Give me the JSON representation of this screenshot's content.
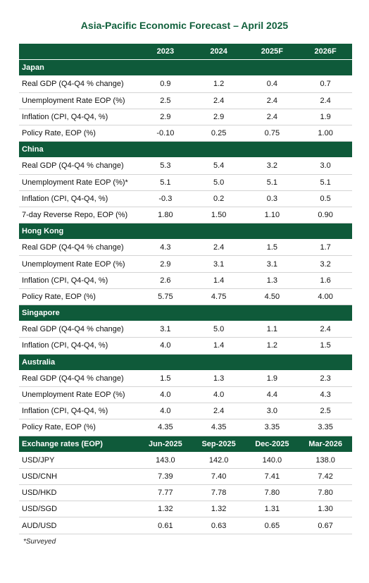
{
  "title": "Asia-Pacific Economic Forecast – April 2025",
  "header": [
    "2023",
    "2024",
    "2025F",
    "2026F"
  ],
  "sections": [
    {
      "name": "Japan",
      "rows": [
        {
          "label": "Real GDP (Q4-Q4 % change)",
          "values": [
            "0.9",
            "1.2",
            "0.4",
            "0.7"
          ]
        },
        {
          "label": "Unemployment Rate EOP (%)",
          "values": [
            "2.5",
            "2.4",
            "2.4",
            "2.4"
          ]
        },
        {
          "label": "Inflation (CPI, Q4-Q4, %)",
          "values": [
            "2.9",
            "2.9",
            "2.4",
            "1.9"
          ]
        },
        {
          "label": "Policy Rate, EOP (%)",
          "values": [
            "-0.10",
            "0.25",
            "0.75",
            "1.00"
          ]
        }
      ]
    },
    {
      "name": "China",
      "rows": [
        {
          "label": "Real GDP (Q4-Q4 % change)",
          "values": [
            "5.3",
            "5.4",
            "3.2",
            "3.0"
          ]
        },
        {
          "label": "Unemployment Rate EOP (%)*",
          "values": [
            "5.1",
            "5.0",
            "5.1",
            "5.1"
          ]
        },
        {
          "label": "Inflation (CPI, Q4-Q4, %)",
          "values": [
            "-0.3",
            "0.2",
            "0.3",
            "0.5"
          ]
        },
        {
          "label": "7-day Reverse Repo, EOP (%)",
          "values": [
            "1.80",
            "1.50",
            "1.10",
            "0.90"
          ]
        }
      ]
    },
    {
      "name": "Hong Kong",
      "rows": [
        {
          "label": "Real GDP (Q4-Q4 % change)",
          "values": [
            "4.3",
            "2.4",
            "1.5",
            "1.7"
          ]
        },
        {
          "label": "Unemployment Rate EOP (%)",
          "values": [
            "2.9",
            "3.1",
            "3.1",
            "3.2"
          ]
        },
        {
          "label": "Inflation (CPI, Q4-Q4, %)",
          "values": [
            "2.6",
            "1.4",
            "1.3",
            "1.6"
          ]
        },
        {
          "label": "Policy Rate, EOP (%)",
          "values": [
            "5.75",
            "4.75",
            "4.50",
            "4.00"
          ]
        }
      ]
    },
    {
      "name": "Singapore",
      "rows": [
        {
          "label": "Real GDP (Q4-Q4 % change)",
          "values": [
            "3.1",
            "5.0",
            "1.1",
            "2.4"
          ]
        },
        {
          "label": "Inflation (CPI, Q4-Q4, %)",
          "values": [
            "4.0",
            "1.4",
            "1.2",
            "1.5"
          ]
        }
      ]
    },
    {
      "name": "Australia",
      "rows": [
        {
          "label": "Real GDP (Q4-Q4 % change)",
          "values": [
            "1.5",
            "1.3",
            "1.9",
            "2.3"
          ]
        },
        {
          "label": "Unemployment Rate EOP (%)",
          "values": [
            "4.0",
            "4.0",
            "4.4",
            "4.3"
          ]
        },
        {
          "label": "Inflation (CPI, Q4-Q4, %)",
          "values": [
            "4.0",
            "2.4",
            "3.0",
            "2.5"
          ]
        },
        {
          "label": "Policy Rate, EOP (%)",
          "values": [
            "4.35",
            "4.35",
            "3.35",
            "3.35"
          ]
        }
      ]
    }
  ],
  "fx": {
    "title": "Exchange rates (EOP)",
    "columns": [
      "Jun-2025",
      "Sep-2025",
      "Dec-2025",
      "Mar-2026"
    ],
    "rows": [
      {
        "label": "USD/JPY",
        "values": [
          "143.0",
          "142.0",
          "140.0",
          "138.0"
        ]
      },
      {
        "label": "USD/CNH",
        "values": [
          "7.39",
          "7.40",
          "7.41",
          "7.42"
        ]
      },
      {
        "label": "USD/HKD",
        "values": [
          "7.77",
          "7.78",
          "7.80",
          "7.80"
        ]
      },
      {
        "label": "USD/SGD",
        "values": [
          "1.32",
          "1.32",
          "1.31",
          "1.30"
        ]
      },
      {
        "label": "AUD/USD",
        "values": [
          "0.61",
          "0.63",
          "0.65",
          "0.67"
        ]
      }
    ]
  },
  "footnote": "*Surveyed"
}
